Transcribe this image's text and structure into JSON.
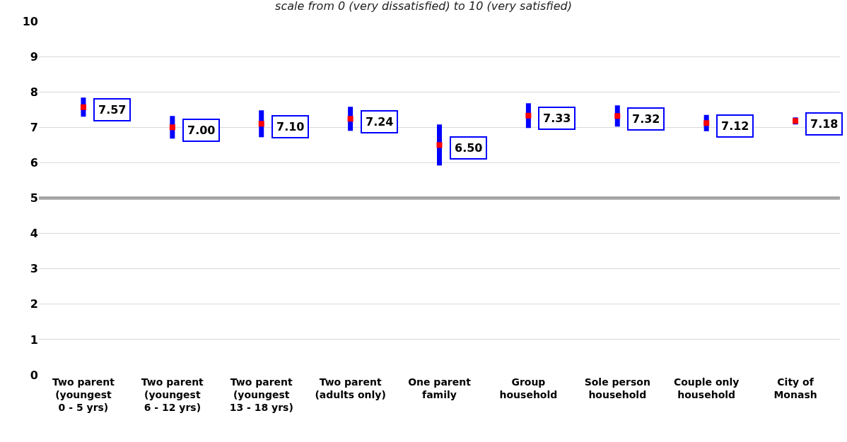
{
  "chart_data": {
    "type": "scatter",
    "subtitle": "scale from 0 (very dissatisfied) to 10 (very satisfied)",
    "categories": [
      "Two parent\n(youngest\n0 - 5 yrs)",
      "Two parent\n(youngest\n6 - 12 yrs)",
      "Two parent\n(youngest\n13 - 18 yrs)",
      "Two parent\n(adults only)",
      "One parent\nfamily",
      "Group\nhousehold",
      "Sole person\nhousehold",
      "Couple only\nhousehold",
      "City of\nMonash"
    ],
    "series": [
      {
        "color": "#ff0000",
        "values": [
          7.57,
          7.0,
          7.1,
          7.24,
          6.5,
          7.33,
          7.32,
          7.12,
          7.18
        ],
        "errors": [
          0.27,
          0.32,
          0.38,
          0.34,
          0.58,
          0.35,
          0.3,
          0.23,
          0.1
        ],
        "value_labels": [
          "7.57",
          "7.00",
          "7.10",
          "7.24",
          "6.50",
          "7.33",
          "7.32",
          "7.12",
          "7.18"
        ]
      }
    ],
    "ylim": [
      0,
      10
    ],
    "yticks": [
      0,
      1,
      2,
      3,
      4,
      5,
      6,
      7,
      8,
      9,
      10
    ],
    "grid": "y",
    "marker": "square",
    "ref_lines": [
      {
        "axis": "y",
        "value": 5,
        "color": "#808080"
      }
    ]
  }
}
